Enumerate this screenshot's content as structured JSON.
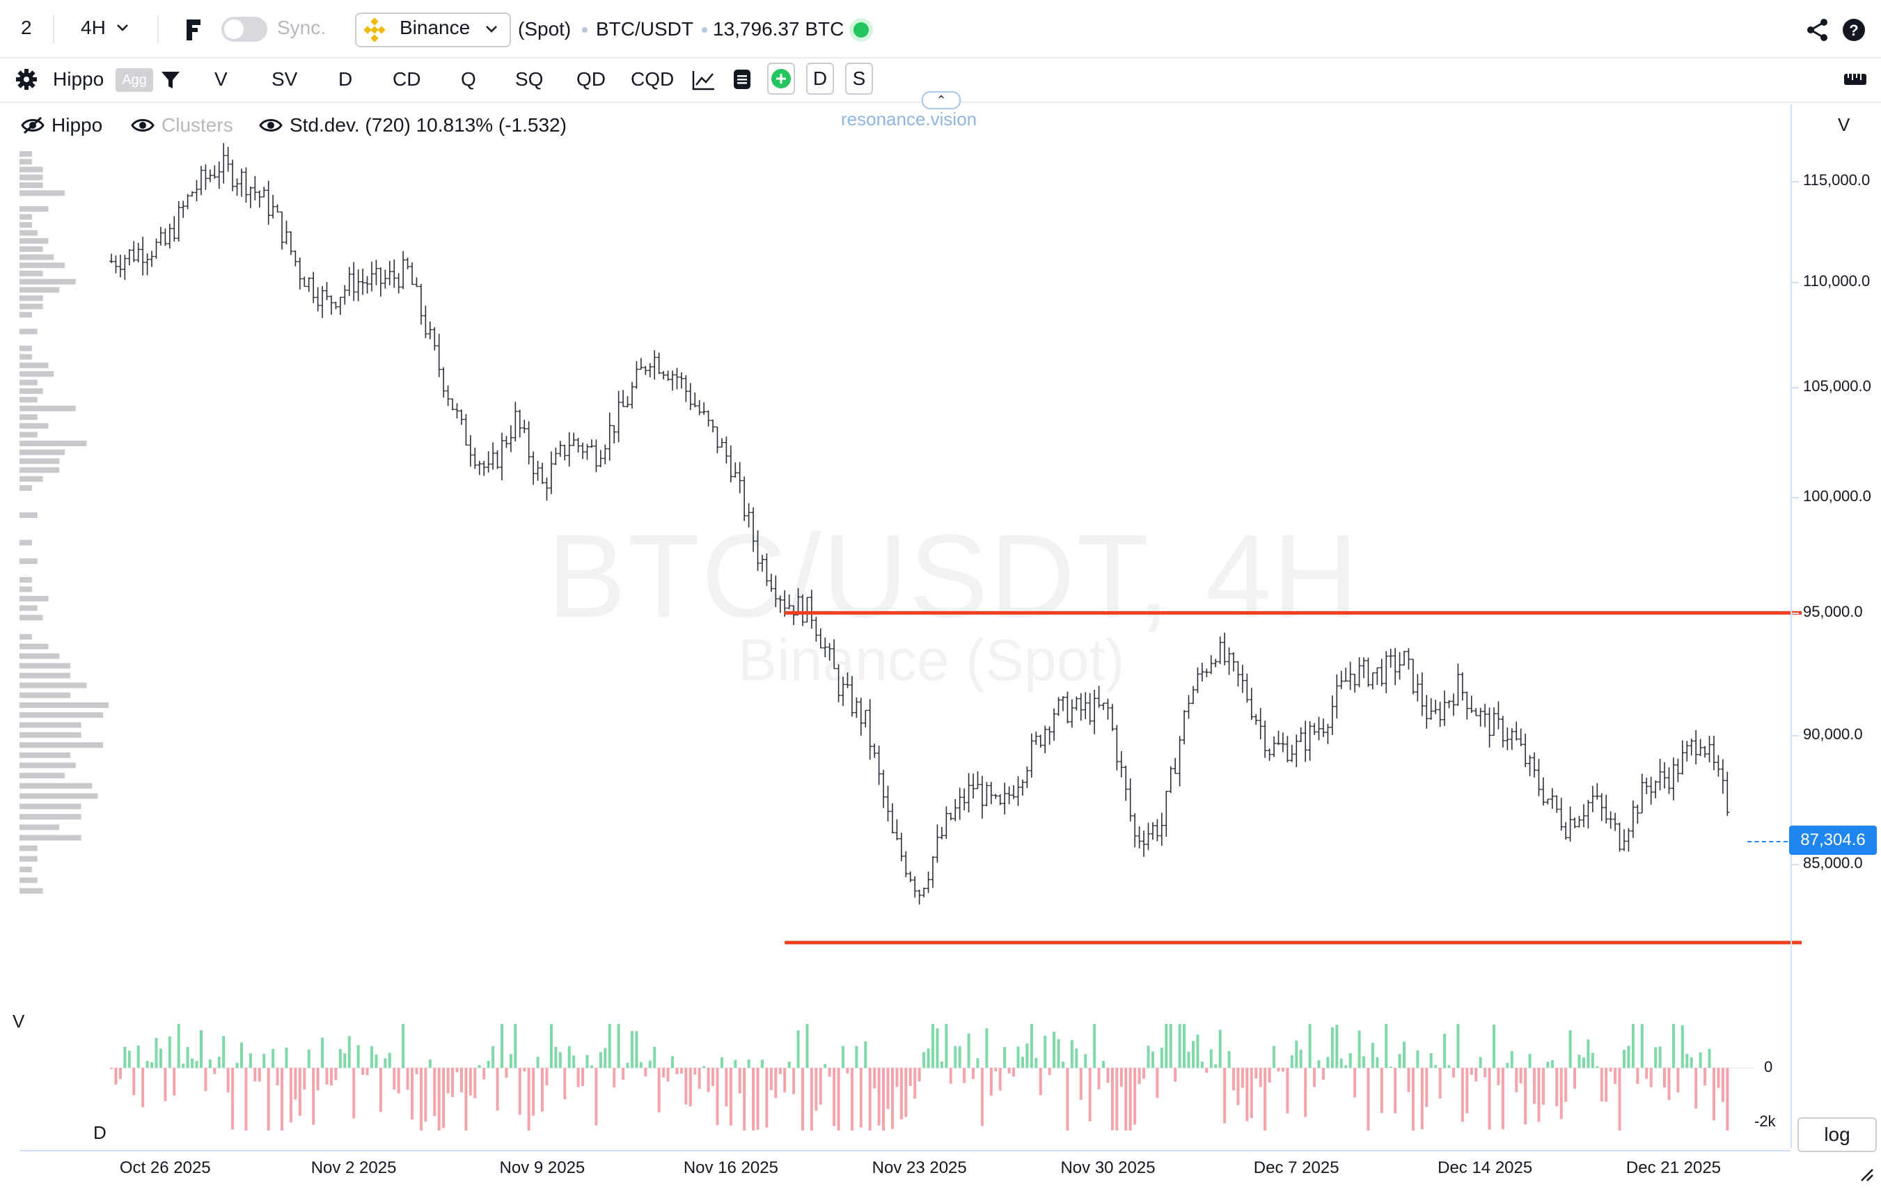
{
  "topbar": {
    "layout_count": "2",
    "interval": "4H",
    "sync_label": "Sync.",
    "exchange": "Binance",
    "market_type": "(Spot)",
    "symbol": "BTC/USDT",
    "volume_value": "13,796.37 BTC"
  },
  "toolbar": {
    "indicator": "Hippo",
    "agg_badge": "Agg",
    "items": [
      "V",
      "SV",
      "D",
      "CD",
      "Q",
      "SQ",
      "QD",
      "CQD"
    ],
    "box_d": "D",
    "box_s": "S"
  },
  "legend": {
    "hippo": "Hippo",
    "clusters": "Clusters",
    "stddev": "Std.dev. (720) 10.813% (-1.532)"
  },
  "watermark": {
    "site": "resonance.vision",
    "main": "BTC/USDT, 4H",
    "sub": "Binance (Spot)"
  },
  "pane_labels": {
    "profile_v": "V",
    "price_v": "V",
    "delta_d": "D"
  },
  "price_axis": {
    "labels": [
      "115,000.0",
      "110,000.0",
      "105,000.0",
      "100,000.0",
      "95,000.0",
      "90,000.0",
      "85,000.0"
    ],
    "current_price": "87,304.6",
    "delta_labels": [
      "0",
      "-2k"
    ],
    "scale_button": "log"
  },
  "time_axis": {
    "labels": [
      "Oct 26 2025",
      "Nov 2 2025",
      "Nov 9 2025",
      "Nov 16 2025",
      "Nov 23 2025",
      "Nov 30 2025",
      "Dec 7 2025",
      "Dec 14 2025",
      "Dec 21 2025"
    ]
  },
  "colors": {
    "accent_blue": "#1f86ef",
    "level_red": "#f23d1f",
    "delta_positive": "#7fd8a8",
    "delta_negative": "#f5a3aa",
    "status_green": "#22c55e",
    "binance_yellow": "#f0b90b"
  },
  "chart_data": {
    "type": "ohlc",
    "symbol": "BTC/USDT",
    "interval": "4H",
    "x_range": [
      "2025-10-24",
      "2025-12-24"
    ],
    "y_scale": "log",
    "ylim": [
      80200,
      116800
    ],
    "daily_closes": [
      {
        "date": "2025-10-24",
        "price": 111000
      },
      {
        "date": "2025-10-25",
        "price": 111500
      },
      {
        "date": "2025-10-26",
        "price": 111800
      },
      {
        "date": "2025-10-27",
        "price": 114500
      },
      {
        "date": "2025-10-28",
        "price": 115800
      },
      {
        "date": "2025-10-29",
        "price": 115000
      },
      {
        "date": "2025-10-30",
        "price": 113500
      },
      {
        "date": "2025-10-31",
        "price": 110500
      },
      {
        "date": "2025-11-01",
        "price": 109000
      },
      {
        "date": "2025-11-02",
        "price": 110000
      },
      {
        "date": "2025-11-03",
        "price": 110000
      },
      {
        "date": "2025-11-04",
        "price": 110500
      },
      {
        "date": "2025-11-05",
        "price": 106500
      },
      {
        "date": "2025-11-06",
        "price": 103000
      },
      {
        "date": "2025-11-07",
        "price": 101000
      },
      {
        "date": "2025-11-08",
        "price": 103500
      },
      {
        "date": "2025-11-09",
        "price": 100500
      },
      {
        "date": "2025-11-10",
        "price": 102500
      },
      {
        "date": "2025-11-11",
        "price": 102000
      },
      {
        "date": "2025-11-12",
        "price": 104000
      },
      {
        "date": "2025-11-13",
        "price": 106500
      },
      {
        "date": "2025-11-14",
        "price": 105500
      },
      {
        "date": "2025-11-15",
        "price": 103500
      },
      {
        "date": "2025-11-16",
        "price": 101500
      },
      {
        "date": "2025-11-17",
        "price": 97500
      },
      {
        "date": "2025-11-18",
        "price": 95500
      },
      {
        "date": "2025-11-19",
        "price": 95000
      },
      {
        "date": "2025-11-20",
        "price": 92000
      },
      {
        "date": "2025-11-21",
        "price": 90500
      },
      {
        "date": "2025-11-22",
        "price": 86000
      },
      {
        "date": "2025-11-23",
        "price": 84000
      },
      {
        "date": "2025-11-24",
        "price": 86500
      },
      {
        "date": "2025-11-25",
        "price": 88000
      },
      {
        "date": "2025-11-26",
        "price": 87000
      },
      {
        "date": "2025-11-27",
        "price": 89000
      },
      {
        "date": "2025-11-28",
        "price": 91000
      },
      {
        "date": "2025-11-29",
        "price": 91000
      },
      {
        "date": "2025-11-30",
        "price": 91000
      },
      {
        "date": "2025-12-01",
        "price": 86000
      },
      {
        "date": "2025-12-02",
        "price": 86500
      },
      {
        "date": "2025-12-03",
        "price": 91500
      },
      {
        "date": "2025-12-04",
        "price": 93500
      },
      {
        "date": "2025-12-05",
        "price": 92000
      },
      {
        "date": "2025-12-06",
        "price": 89500
      },
      {
        "date": "2025-12-07",
        "price": 89500
      },
      {
        "date": "2025-12-08",
        "price": 90500
      },
      {
        "date": "2025-12-09",
        "price": 92500
      },
      {
        "date": "2025-12-10",
        "price": 92500
      },
      {
        "date": "2025-12-11",
        "price": 93000
      },
      {
        "date": "2025-12-12",
        "price": 90500
      },
      {
        "date": "2025-12-13",
        "price": 92000
      },
      {
        "date": "2025-12-14",
        "price": 90500
      },
      {
        "date": "2025-12-15",
        "price": 90000
      },
      {
        "date": "2025-12-16",
        "price": 88000
      },
      {
        "date": "2025-12-17",
        "price": 86500
      },
      {
        "date": "2025-12-18",
        "price": 87500
      },
      {
        "date": "2025-12-19",
        "price": 86000
      },
      {
        "date": "2025-12-20",
        "price": 88000
      },
      {
        "date": "2025-12-21",
        "price": 88500
      },
      {
        "date": "2025-12-22",
        "price": 90000
      },
      {
        "date": "2025-12-23",
        "price": 87300
      }
    ],
    "horizontal_levels": [
      95000,
      82100
    ],
    "current_price": 87304.6
  }
}
